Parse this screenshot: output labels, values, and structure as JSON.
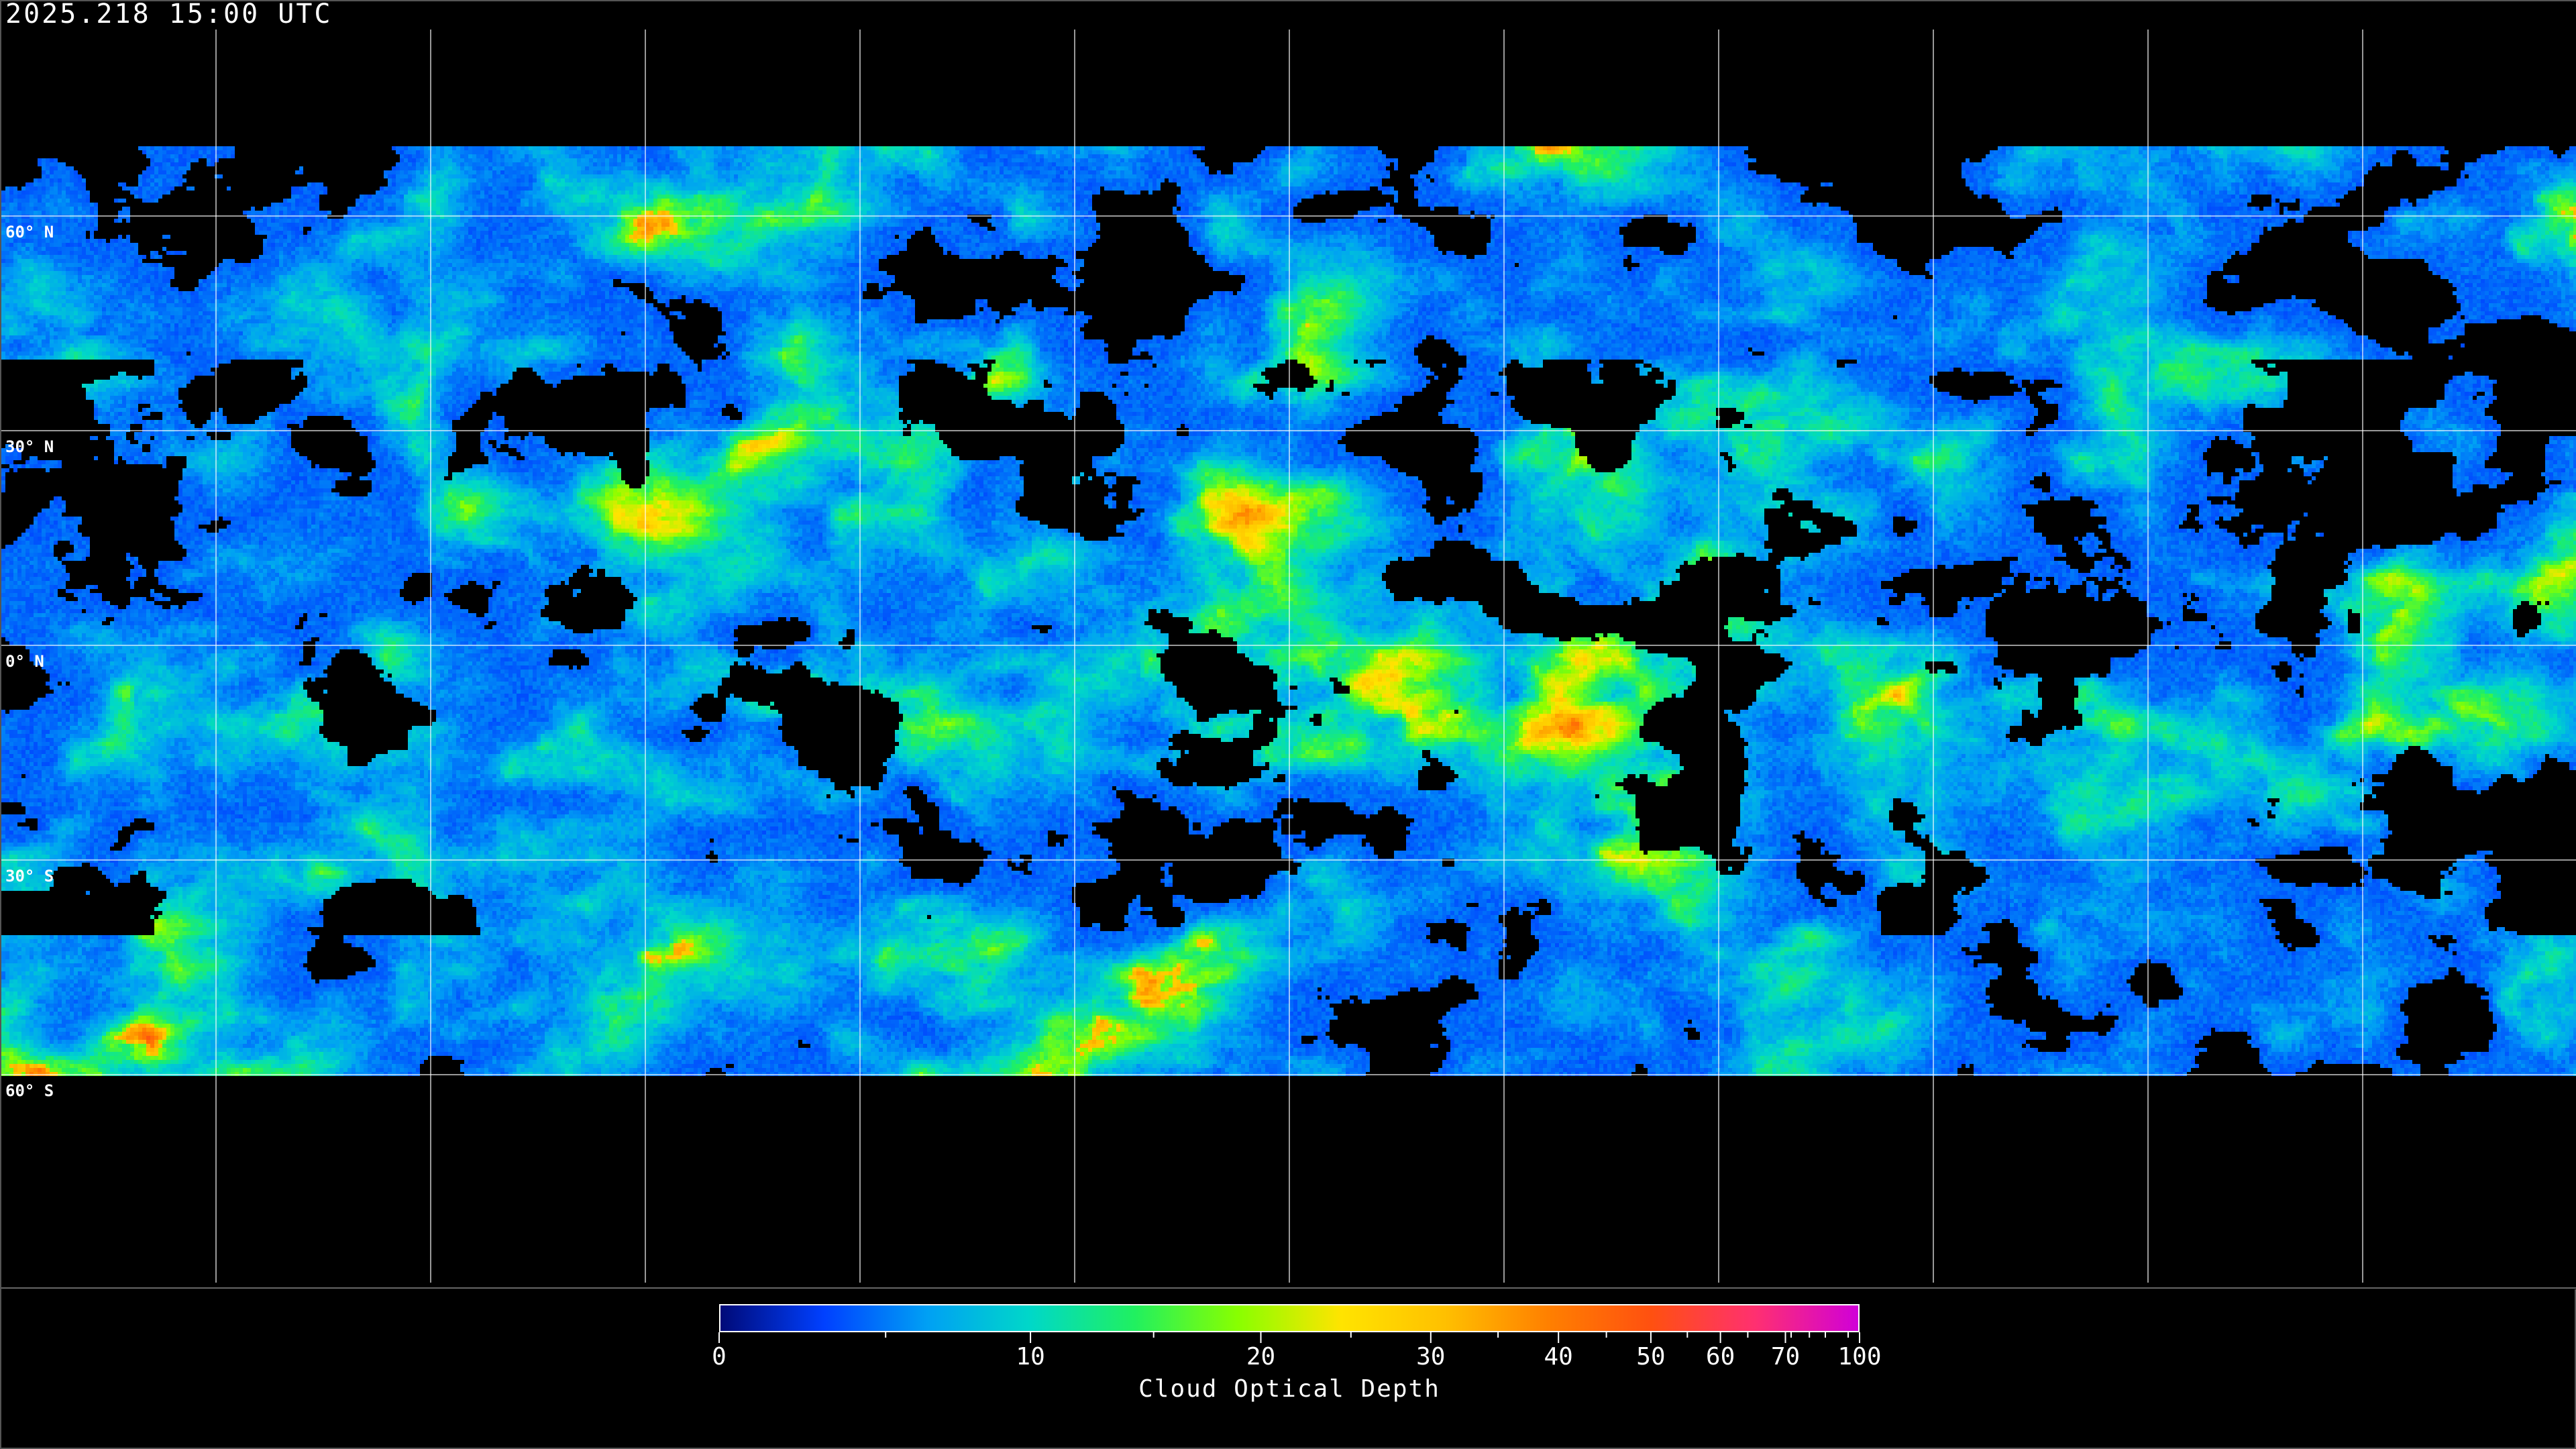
{
  "header": {
    "timestamp": "2025.218 15:00 UTC"
  },
  "map": {
    "projection": "equirectangular",
    "lon_range": [
      -180,
      180
    ],
    "lat_range": [
      -90,
      90
    ],
    "graticule_spacing_deg": 30,
    "lat_labels": [
      "60° N",
      "30° N",
      "0° N",
      "30° S",
      "60° S"
    ],
    "background": "#000000",
    "graticule_color": "#ffffff",
    "coastline_color": "#ffffff"
  },
  "colorbar": {
    "title": "Cloud Optical Depth",
    "range": [
      0,
      100
    ],
    "tick_labels": [
      "0",
      "10",
      "20",
      "30",
      "40",
      "50",
      "60",
      "70",
      "100"
    ],
    "colors": [
      "#000a78",
      "#0040ff",
      "#00a0f4",
      "#00d8c8",
      "#20f060",
      "#88ff00",
      "#ffe400",
      "#ffc000",
      "#ff8000",
      "#ff5010",
      "#ff3070",
      "#d000d8"
    ]
  }
}
